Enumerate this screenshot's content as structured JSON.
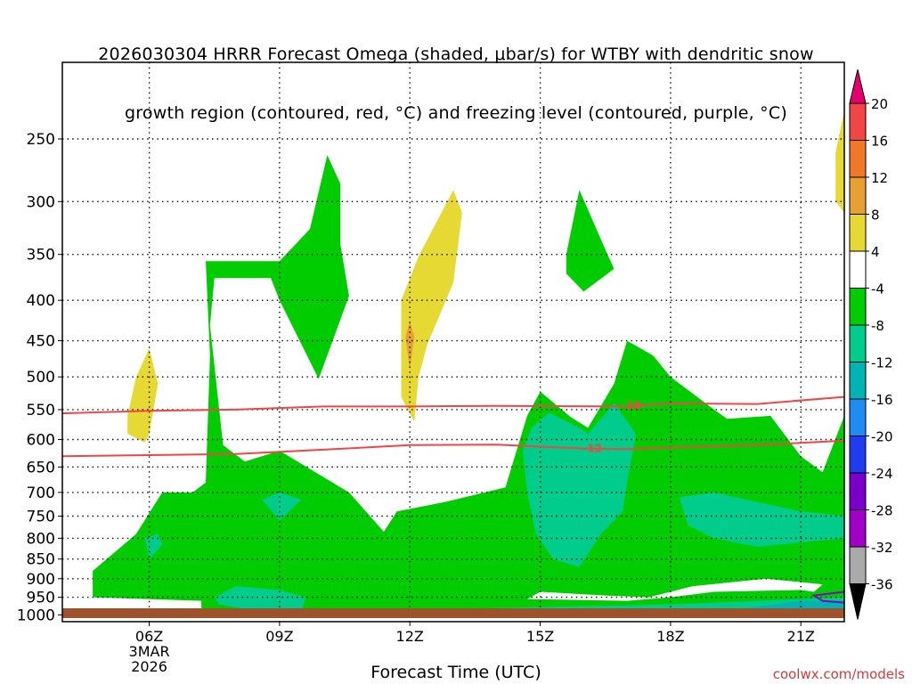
{
  "title_lines": [
    "2026030304 HRRR Forecast Omega (shaded, μbar/s) for WTBY with dendritic snow",
    "growth region (contoured, red, °C) and freezing level (contoured, purple, °C)"
  ],
  "credit": "coolwx.com/models",
  "colors": {
    "green": "#00cc00",
    "teal": "#00cc8c",
    "cyan": "#00b4b4",
    "yellow": "#e6d933",
    "orange": "#e6a033",
    "red_line": "#f04646",
    "purple_line": "#8a00c8",
    "ground": "#a0522d"
  },
  "chart_data": {
    "type": "heatmap",
    "title": "2026030304 HRRR Forecast Omega (shaded, μbar/s) for WTBY with dendritic snow growth region (contoured, red, °C) and freezing level (contoured, purple, °C)",
    "xlabel": "Forecast Time (UTC)",
    "ylabel": "",
    "x_tick_labels": [
      "06Z",
      "09Z",
      "12Z",
      "15Z",
      "18Z",
      "21Z"
    ],
    "x_ticks_hours": [
      6,
      9,
      12,
      15,
      18,
      21
    ],
    "x_date_label": [
      "3MAR",
      "2026"
    ],
    "xlim_hours": [
      4,
      22
    ],
    "y_scale": "log-pressure",
    "y_tick_labels": [
      "250",
      "300",
      "350",
      "400",
      "450",
      "500",
      "550",
      "600",
      "650",
      "700",
      "750",
      "800",
      "850",
      "900",
      "950",
      "1000"
    ],
    "y_ticks_hpa": [
      250,
      300,
      350,
      400,
      450,
      500,
      550,
      600,
      650,
      700,
      750,
      800,
      850,
      900,
      950,
      1000
    ],
    "ylim_hpa": [
      200,
      1020
    ],
    "grid": true,
    "colorbar": {
      "labels": [
        "20",
        "16",
        "12",
        "8",
        "4",
        "-4",
        "-8",
        "-12",
        "-16",
        "-20",
        "-24",
        "-28",
        "-32",
        "-36"
      ],
      "colors": [
        "#e6e633",
        "#f04646",
        "#f07828",
        "#e6a033",
        "#e6d933",
        "#ffffff",
        "#00cc00",
        "#00cc8c",
        "#00b4b4",
        "#1e8cf0",
        "#1e3cf0",
        "#7800c8",
        "#a000c8",
        "#aaaaaa"
      ],
      "top_arrow": "#e6006e",
      "bottom_arrow": "#000000"
    },
    "contours": [
      {
        "label": "-18",
        "color": "red",
        "points": [
          [
            4,
            556
          ],
          [
            6,
            552
          ],
          [
            8,
            550
          ],
          [
            10,
            545
          ],
          [
            12,
            545
          ],
          [
            14,
            544
          ],
          [
            17,
            545
          ],
          [
            18,
            540
          ],
          [
            20,
            541
          ],
          [
            22,
            530
          ]
        ]
      },
      {
        "label": "-12",
        "color": "red",
        "points": [
          [
            4,
            630
          ],
          [
            6,
            628
          ],
          [
            8,
            626
          ],
          [
            10,
            618
          ],
          [
            12,
            610
          ],
          [
            14,
            609
          ],
          [
            16,
            616
          ],
          [
            17,
            617
          ],
          [
            18,
            614
          ],
          [
            20,
            610
          ],
          [
            22,
            602
          ]
        ]
      },
      {
        "label": "",
        "color": "purple",
        "points": [
          [
            22,
            935
          ],
          [
            21.3,
            945
          ],
          [
            21.5,
            960
          ],
          [
            22,
            965
          ]
        ]
      }
    ]
  }
}
